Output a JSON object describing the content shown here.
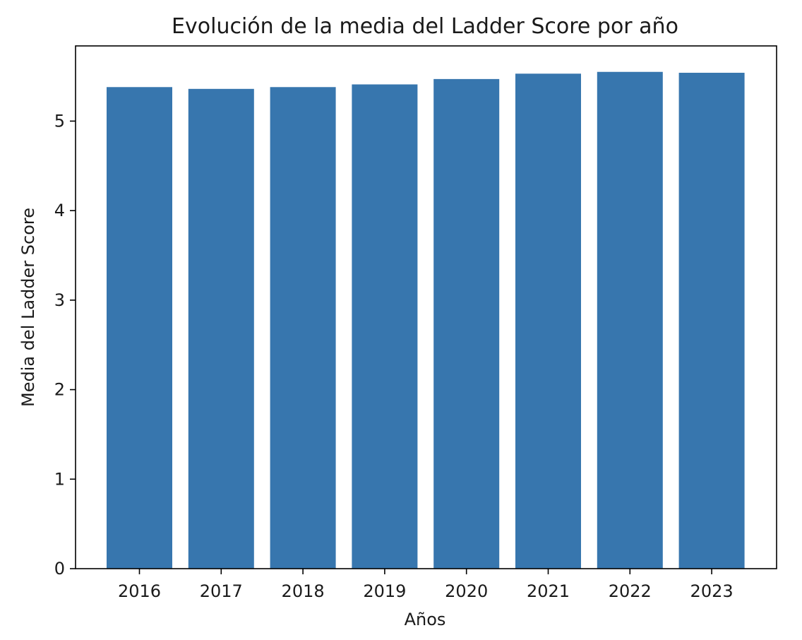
{
  "chart_data": {
    "type": "bar",
    "title": "Evolución de la media del Ladder Score por año",
    "xlabel": "Años",
    "ylabel": "Media del Ladder Score",
    "categories": [
      "2016",
      "2017",
      "2018",
      "2019",
      "2020",
      "2021",
      "2022",
      "2023"
    ],
    "values": [
      5.38,
      5.36,
      5.38,
      5.41,
      5.47,
      5.53,
      5.55,
      5.54
    ],
    "ylim": [
      0,
      5.84
    ],
    "yticks": [
      0,
      1,
      2,
      3,
      4,
      5
    ],
    "grid": false,
    "bar_color": "#3776ae"
  }
}
